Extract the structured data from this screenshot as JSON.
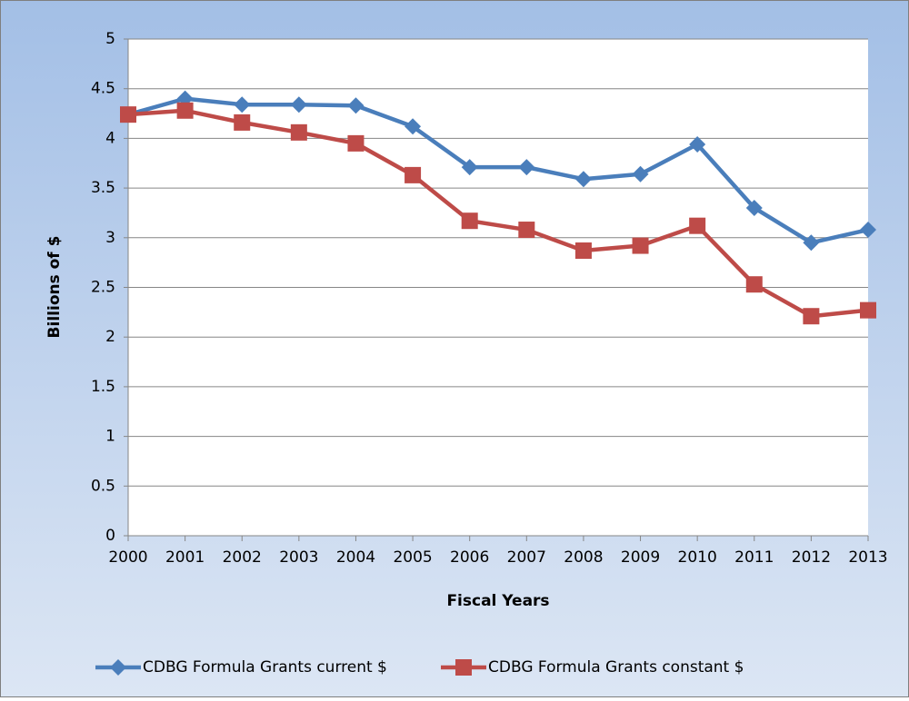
{
  "chart_data": {
    "type": "line",
    "x": [
      2000,
      2001,
      2002,
      2003,
      2004,
      2005,
      2006,
      2007,
      2008,
      2009,
      2010,
      2011,
      2012,
      2013
    ],
    "xlim": [
      2000,
      2013
    ],
    "xticks": [
      2000,
      2001,
      2002,
      2003,
      2004,
      2005,
      2006,
      2007,
      2008,
      2009,
      2010,
      2011,
      2012,
      2013
    ],
    "ylim": [
      0,
      5
    ],
    "yticks": [
      0,
      0.5,
      1,
      1.5,
      2,
      2.5,
      3,
      3.5,
      4,
      4.5,
      5
    ],
    "grid": true,
    "y_label": "Billions of $",
    "x_label": "Fiscal Years",
    "legend": "bottom",
    "series": [
      {
        "name": "CDBG Formula Grants current $",
        "color": "#4a7ebb",
        "marker": "diamond",
        "values": [
          4.24,
          4.4,
          4.34,
          4.34,
          4.33,
          4.12,
          3.71,
          3.71,
          3.59,
          3.64,
          3.94,
          3.3,
          2.95,
          3.08
        ]
      },
      {
        "name": "CDBG Formula Grants constant $",
        "color": "#be4b48",
        "marker": "square",
        "values": [
          4.24,
          4.28,
          4.16,
          4.06,
          3.95,
          3.63,
          3.17,
          3.08,
          2.87,
          2.92,
          3.12,
          2.53,
          2.21,
          2.27
        ]
      }
    ]
  }
}
